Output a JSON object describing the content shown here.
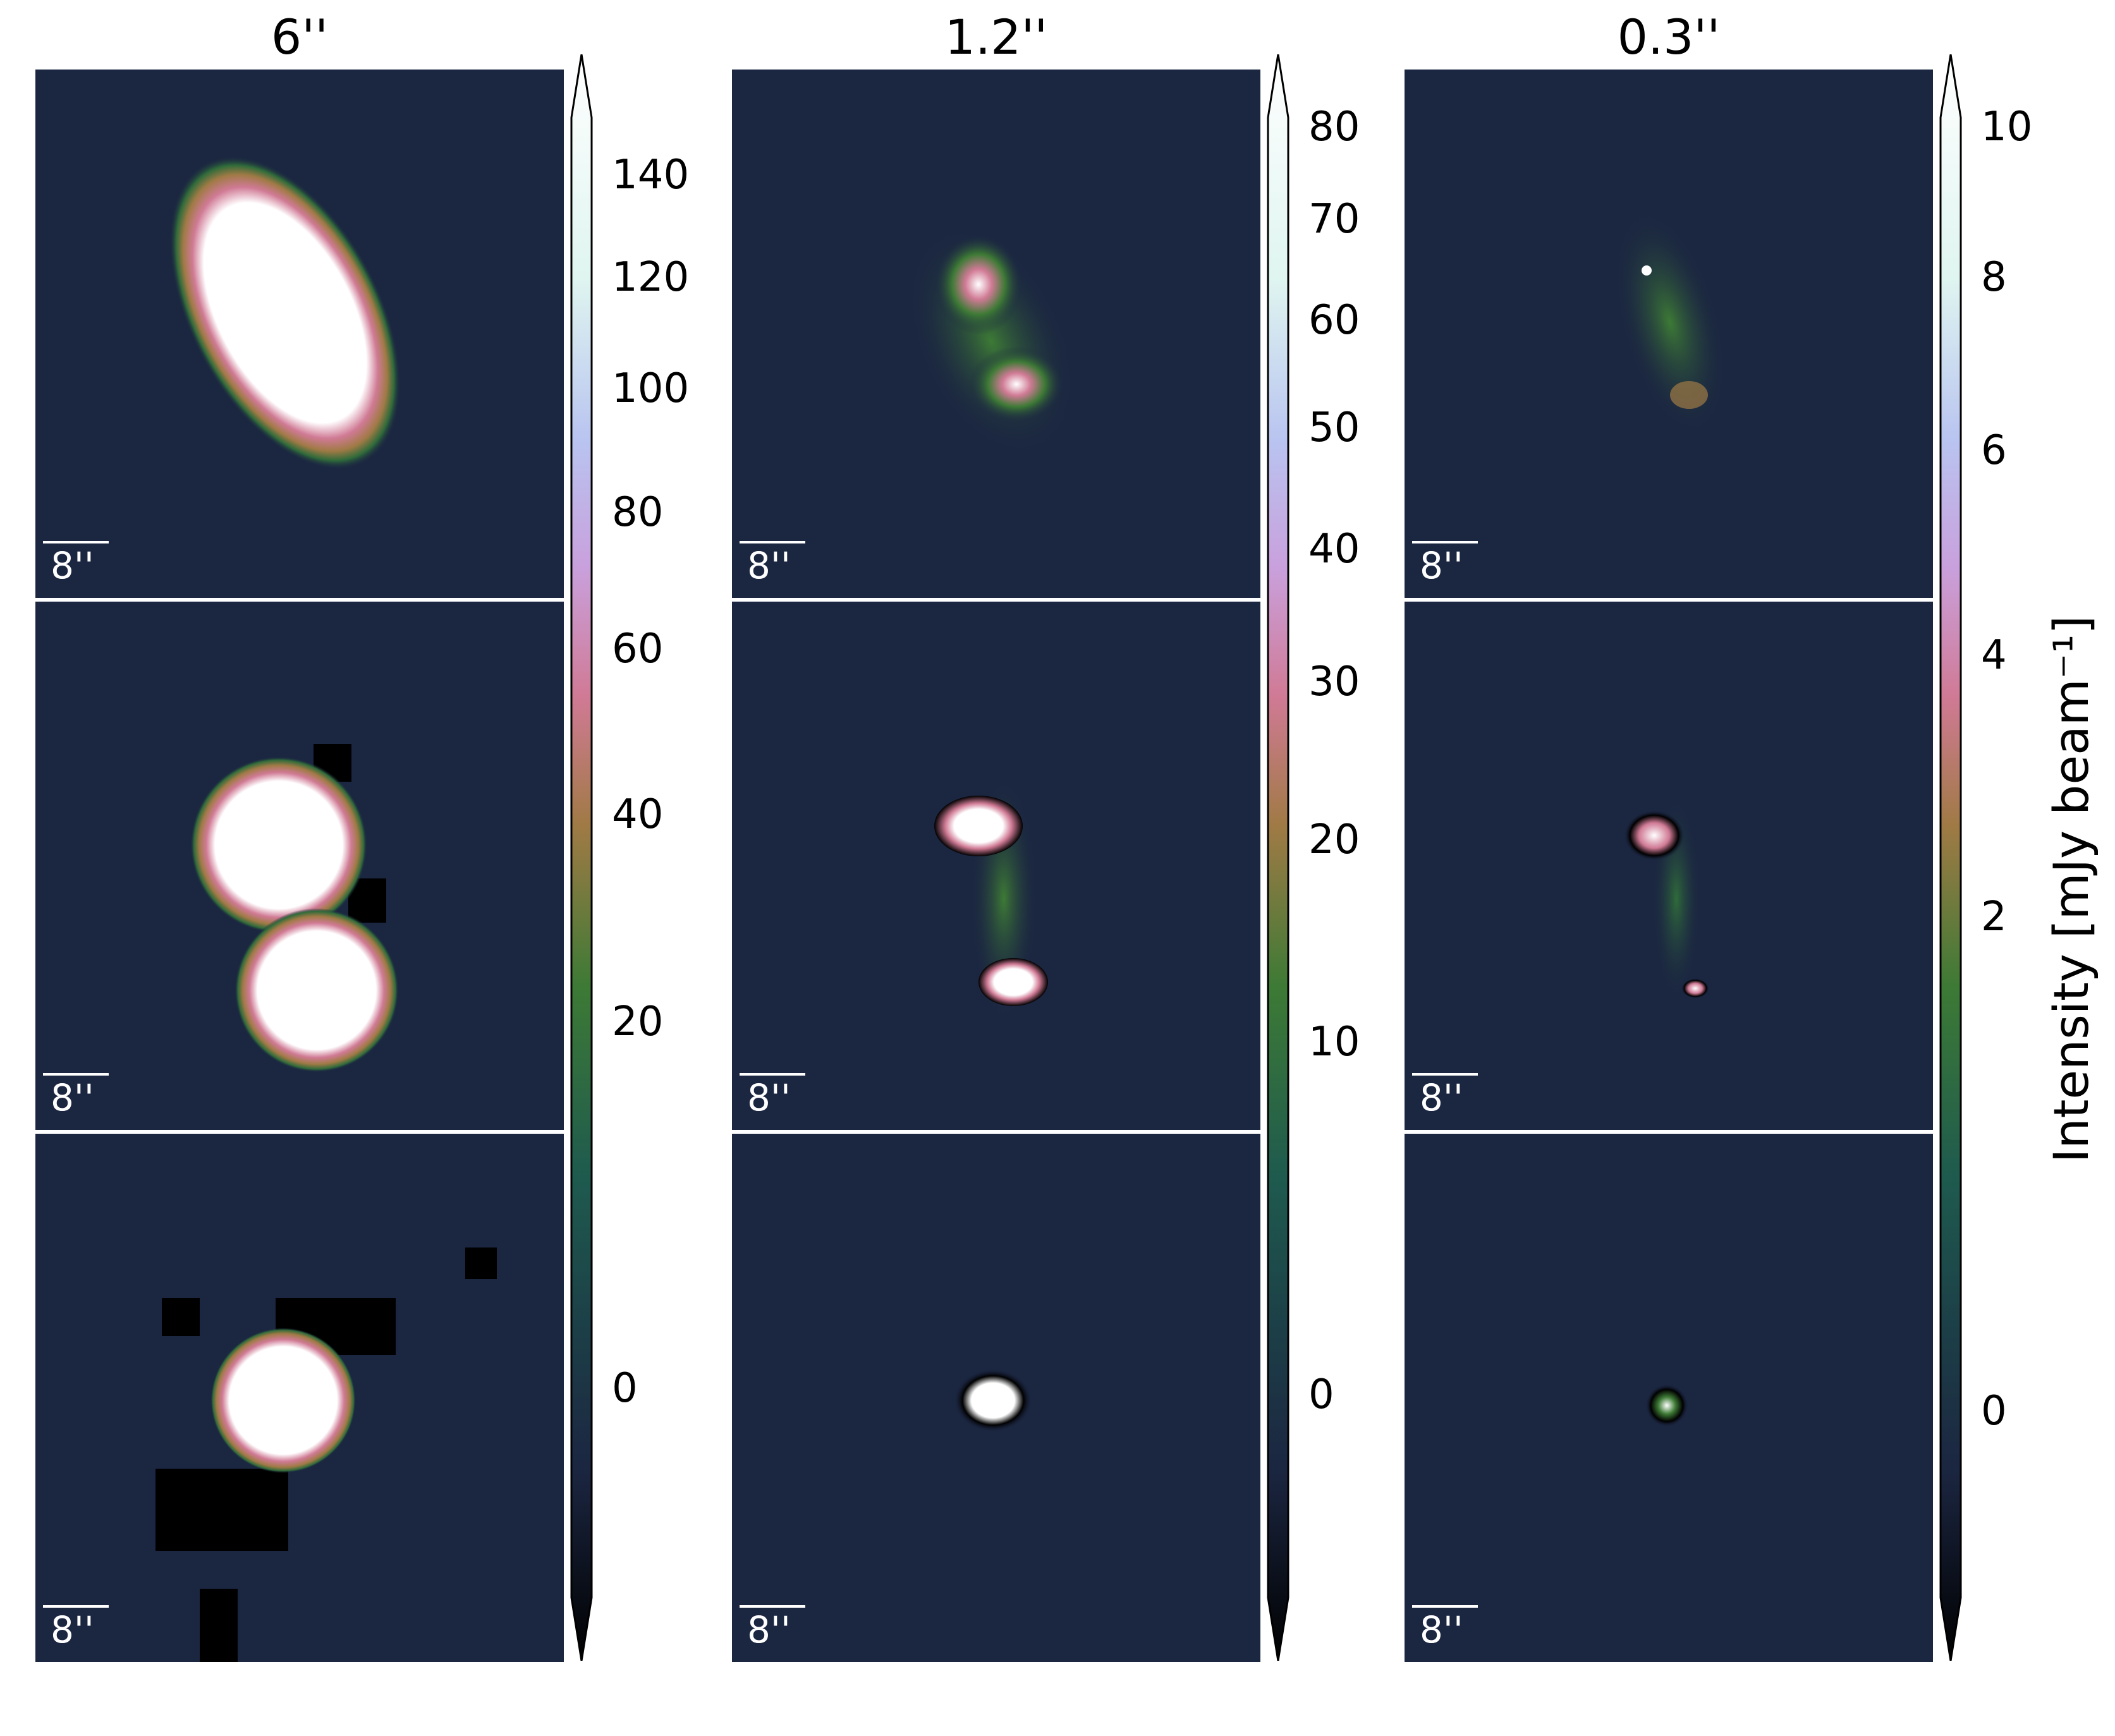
{
  "columns": [
    {
      "title": "6''",
      "ticks": [
        "140",
        "120",
        "100",
        "80",
        "60",
        "40",
        "20",
        "0"
      ]
    },
    {
      "title": "1.2''",
      "ticks": [
        "80",
        "70",
        "60",
        "50",
        "40",
        "30",
        "20",
        "10",
        "0"
      ]
    },
    {
      "title": "0.3''",
      "ticks": [
        "10",
        "8",
        "6",
        "4",
        "2",
        "0"
      ]
    }
  ],
  "scalebar_label": "8''",
  "colorbar_label": "Intensity [mJy beam⁻¹]",
  "colormap": [
    "#000000",
    "#1b2641",
    "#1e5a4e",
    "#3d7a35",
    "#a07a45",
    "#d07a95",
    "#c9a0dc",
    "#b9c4f0",
    "#dff5f0",
    "#ffffff"
  ],
  "panel_background": "#1b2641"
}
